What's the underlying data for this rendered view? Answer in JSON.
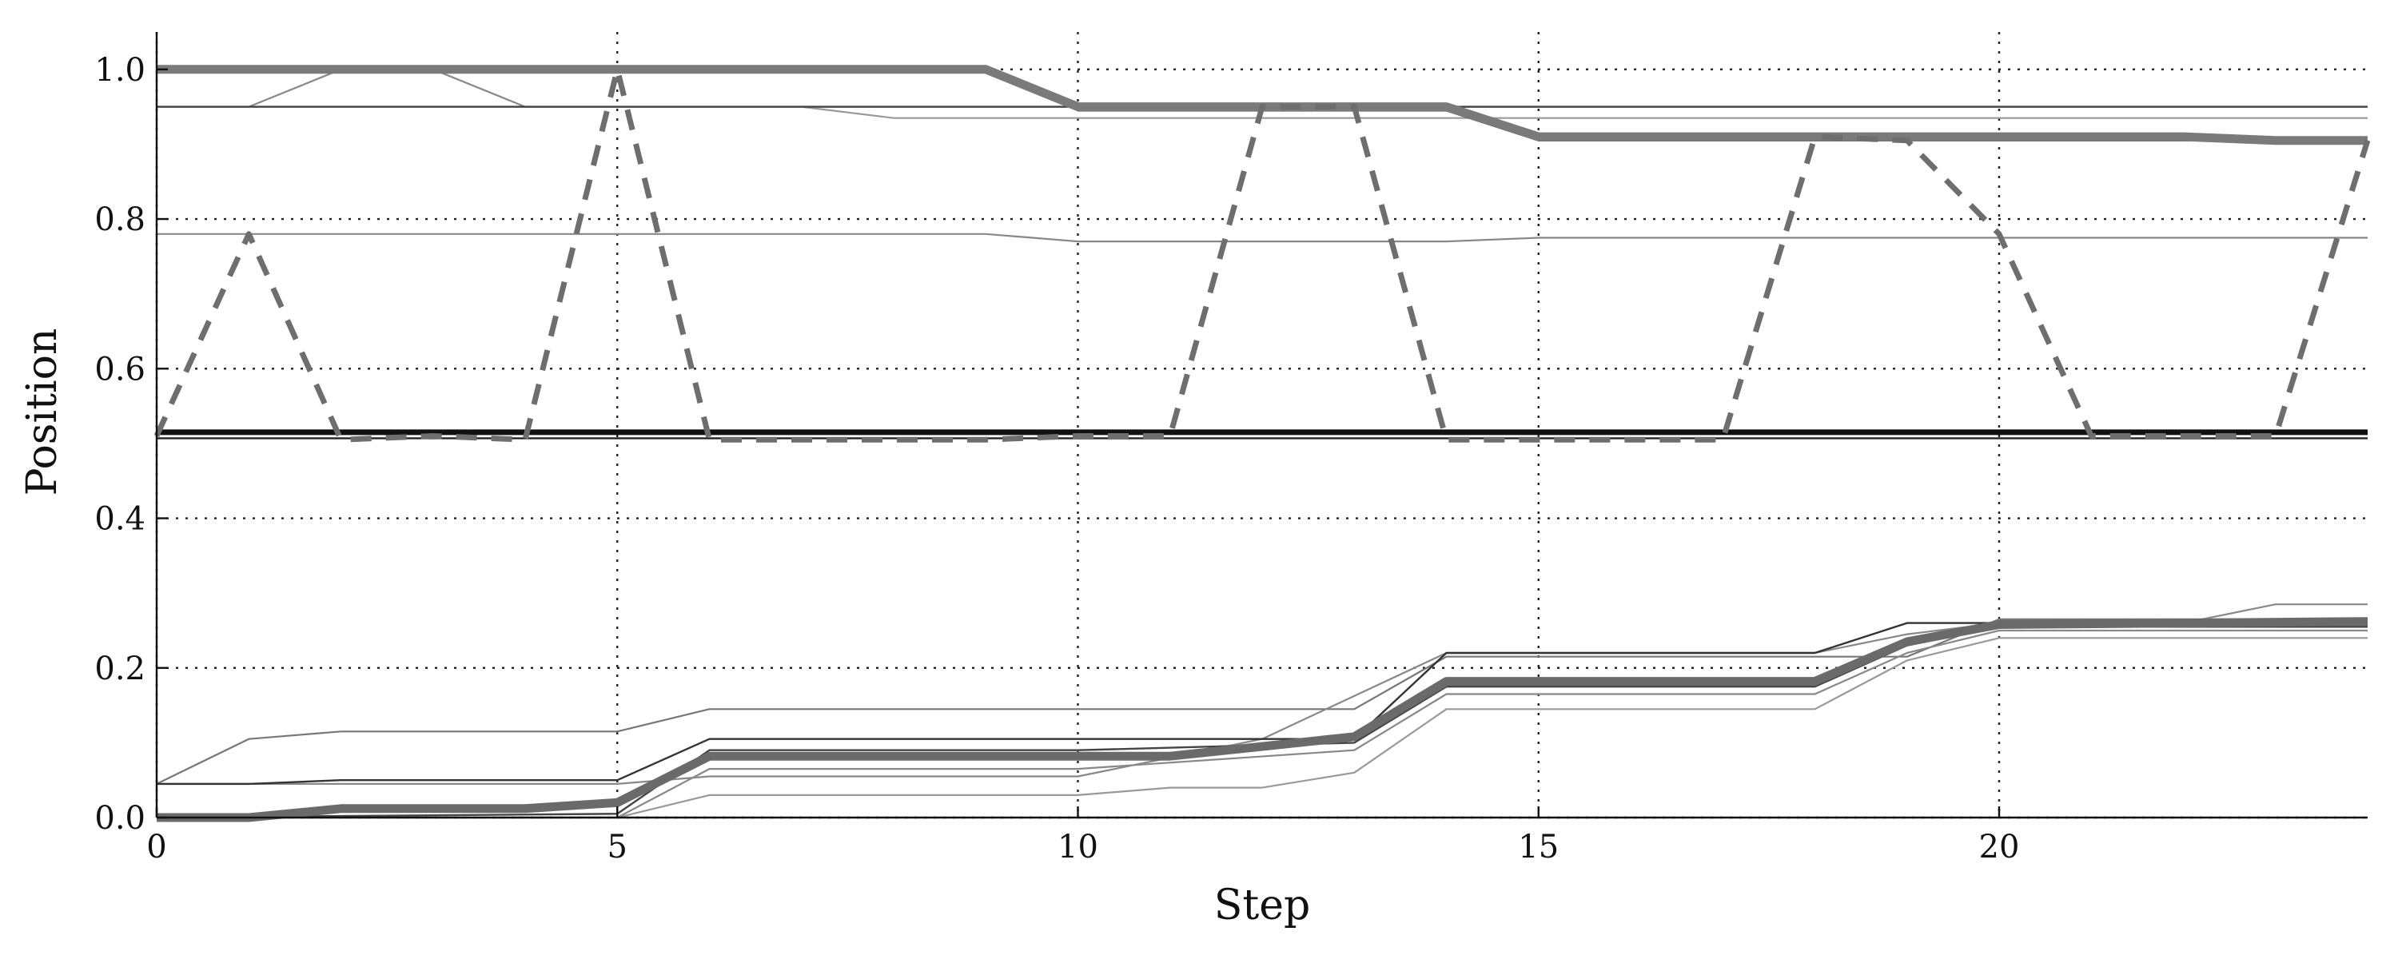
{
  "chart_data": {
    "type": "line",
    "title": "",
    "xlabel": "Step",
    "ylabel": "Position",
    "xlim": [
      0,
      24
    ],
    "ylim": [
      0,
      1.05
    ],
    "xticks": [
      0,
      5,
      10,
      15,
      20
    ],
    "xtick_labels": [
      "0",
      "5",
      "10",
      "15",
      "20"
    ],
    "yticks": [
      0.0,
      0.2,
      0.4,
      0.6,
      0.8,
      1.0
    ],
    "ytick_labels": [
      "0.0",
      "0.2",
      "0.4",
      "0.6",
      "0.8",
      "1.0"
    ],
    "grid": true,
    "legend": "none",
    "series": [
      {
        "style": "thick-gray",
        "color": "#7a7a7a",
        "x": [
          0,
          9,
          10,
          14,
          15,
          22,
          23,
          24
        ],
        "y": [
          1.0,
          1.0,
          0.95,
          0.95,
          0.91,
          0.91,
          0.905,
          0.905
        ]
      },
      {
        "style": "thin-dark",
        "color": "#333333",
        "x": [
          0,
          9,
          10,
          14,
          15,
          24
        ],
        "y": [
          1.0,
          1.0,
          0.945,
          0.945,
          0.905,
          0.905
        ]
      },
      {
        "style": "thin-gray",
        "color": "#888888",
        "x": [
          0,
          1,
          2,
          3,
          4,
          24
        ],
        "y": [
          0.95,
          0.95,
          1.0,
          1.0,
          0.95,
          0.95
        ]
      },
      {
        "style": "thin-dark",
        "color": "#444444",
        "x": [
          0,
          5,
          6,
          24
        ],
        "y": [
          0.95,
          0.95,
          0.95,
          0.95
        ]
      },
      {
        "style": "thin-gray",
        "color": "#999999",
        "x": [
          0,
          7,
          8,
          10,
          24
        ],
        "y": [
          0.95,
          0.95,
          0.935,
          0.935,
          0.935
        ]
      },
      {
        "style": "thin-gray",
        "color": "#888888",
        "x": [
          0,
          9,
          10,
          14,
          15,
          24
        ],
        "y": [
          0.78,
          0.78,
          0.77,
          0.77,
          0.775,
          0.775
        ]
      },
      {
        "style": "dashed",
        "color": "#6e6e6e",
        "x": [
          0,
          1,
          2,
          3,
          4,
          5,
          6,
          7,
          8,
          9,
          10,
          11,
          12,
          13,
          14,
          15,
          16,
          17,
          18,
          19,
          20,
          21,
          22,
          23,
          24
        ],
        "y": [
          0.51,
          0.78,
          0.505,
          0.51,
          0.505,
          1.0,
          0.505,
          0.505,
          0.505,
          0.505,
          0.51,
          0.51,
          0.95,
          0.95,
          0.505,
          0.505,
          0.505,
          0.505,
          0.91,
          0.905,
          0.78,
          0.51,
          0.51,
          0.51,
          0.905
        ]
      },
      {
        "style": "thick-black",
        "color": "#111111",
        "x": [
          0,
          24
        ],
        "y": [
          0.515,
          0.515
        ]
      },
      {
        "style": "thin-dark",
        "color": "#222222",
        "x": [
          0,
          24
        ],
        "y": [
          0.507,
          0.507
        ]
      },
      {
        "style": "thin-gray",
        "color": "#777777",
        "x": [
          0,
          1,
          2,
          5,
          6,
          13,
          14,
          19,
          20,
          24
        ],
        "y": [
          0.045,
          0.105,
          0.115,
          0.115,
          0.145,
          0.145,
          0.215,
          0.215,
          0.265,
          0.265
        ]
      },
      {
        "style": "thin-dark",
        "color": "#333333",
        "x": [
          0,
          1,
          2,
          5,
          6,
          13,
          14,
          18,
          19,
          24
        ],
        "y": [
          0.045,
          0.045,
          0.05,
          0.05,
          0.105,
          0.105,
          0.22,
          0.22,
          0.26,
          0.26
        ]
      },
      {
        "style": "thin-gray",
        "color": "#888888",
        "x": [
          0,
          5,
          6,
          10,
          12,
          14,
          18,
          19,
          20,
          22,
          23,
          24
        ],
        "y": [
          0.045,
          0.045,
          0.055,
          0.055,
          0.105,
          0.22,
          0.22,
          0.245,
          0.26,
          0.26,
          0.285,
          0.285
        ]
      },
      {
        "style": "thick-gray",
        "color": "#6a6a6a",
        "x": [
          0,
          1,
          2,
          4,
          5,
          6,
          11,
          13,
          14,
          18,
          19,
          20,
          24
        ],
        "y": [
          0.0,
          0.0,
          0.012,
          0.012,
          0.02,
          0.082,
          0.082,
          0.108,
          0.182,
          0.182,
          0.235,
          0.258,
          0.262
        ]
      },
      {
        "style": "thin-dark",
        "color": "#444444",
        "x": [
          0,
          5,
          6,
          10,
          13,
          14,
          18,
          19,
          20,
          24
        ],
        "y": [
          0.0,
          0.005,
          0.09,
          0.09,
          0.1,
          0.175,
          0.175,
          0.23,
          0.255,
          0.255
        ]
      },
      {
        "style": "thin-gray",
        "color": "#888888",
        "x": [
          0,
          5,
          6,
          10,
          13,
          14,
          18,
          19,
          20,
          24
        ],
        "y": [
          0.0,
          0.0,
          0.065,
          0.065,
          0.09,
          0.165,
          0.165,
          0.22,
          0.25,
          0.25
        ]
      },
      {
        "style": "thin-gray",
        "color": "#999999",
        "x": [
          0,
          5,
          6,
          10,
          11,
          12,
          13,
          14,
          18,
          19,
          20,
          24
        ],
        "y": [
          0.0,
          0.0,
          0.03,
          0.03,
          0.04,
          0.04,
          0.06,
          0.145,
          0.145,
          0.21,
          0.24,
          0.24
        ]
      }
    ]
  }
}
